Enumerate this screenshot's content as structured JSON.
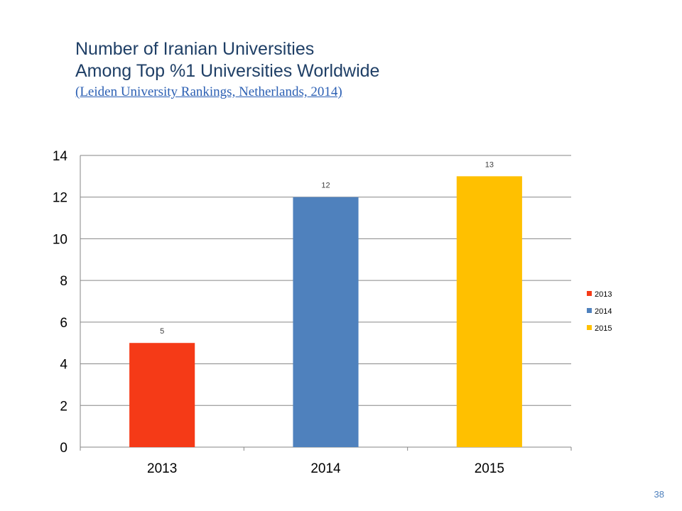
{
  "title": {
    "line1": "Number of Iranian Universities",
    "line2": "Among Top %1 Universities Worldwide",
    "source_link": "(Leiden University Rankings, Netherlands, 2014)"
  },
  "page_number": "38",
  "colors": {
    "title": "#1f3f66",
    "link": "#2b5fb3",
    "bar_2013": "#f53a17",
    "bar_2014": "#4f81bd",
    "bar_2015": "#ffc000",
    "gridline": "#868686"
  },
  "chart_data": {
    "type": "bar",
    "categories": [
      "2013",
      "2014",
      "2015"
    ],
    "values": [
      5,
      12,
      13
    ],
    "data_labels": [
      "5",
      "12",
      "13"
    ],
    "ylim": [
      0,
      14
    ],
    "yticks": [
      0,
      2,
      4,
      6,
      8,
      10,
      12,
      14
    ],
    "grid": true,
    "legend": {
      "placement": "right",
      "entries": [
        {
          "label": "2013",
          "color": "#f53a17"
        },
        {
          "label": "2014",
          "color": "#4f81bd"
        },
        {
          "label": "2015",
          "color": "#ffc000"
        }
      ]
    }
  }
}
